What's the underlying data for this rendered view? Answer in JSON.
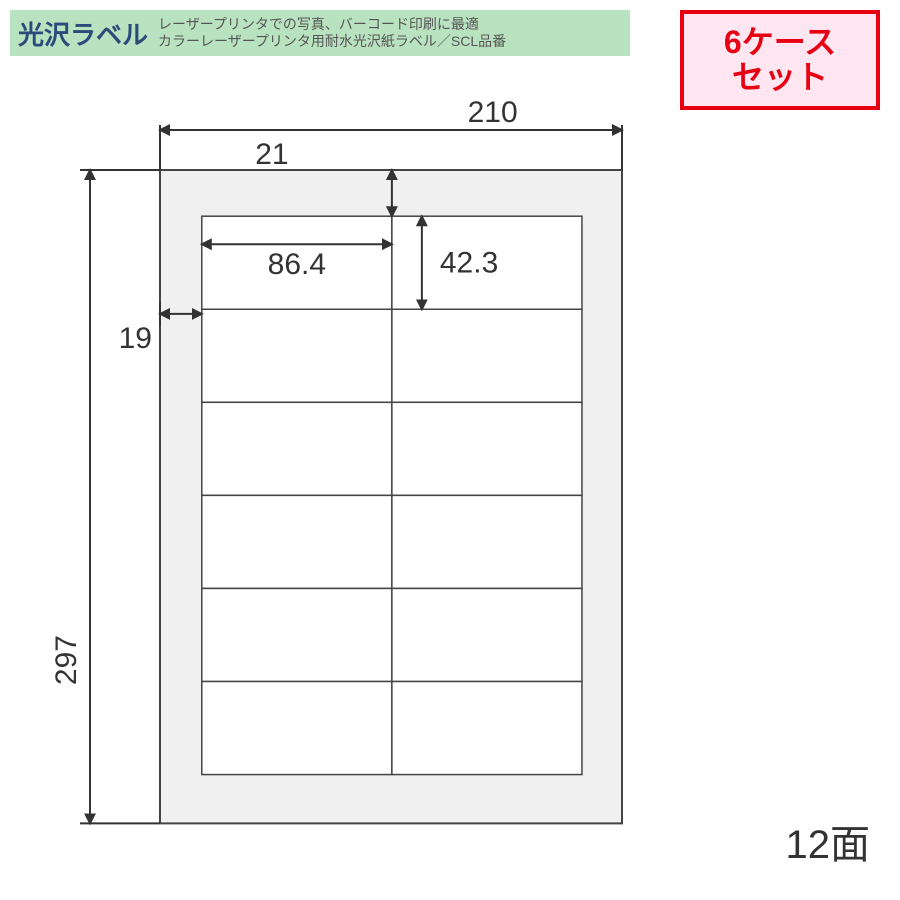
{
  "header": {
    "title": "光沢ラベル",
    "sub1": "レーザープリンタでの写真、バーコード印刷に最適",
    "sub2": "カラーレーザープリンタ用耐水光沢紙ラベル／SCL品番",
    "bg_color": "#b9e2c0",
    "title_color": "#2b4b7a"
  },
  "badge": {
    "line1": "6ケース",
    "line2": "セット",
    "border_color": "#e60012",
    "bg_color": "#ffe6f0",
    "text_color": "#e60012"
  },
  "diagram": {
    "sheet_width_mm": 210,
    "sheet_height_mm": 297,
    "top_margin_mm": 21,
    "left_margin_mm": 19,
    "label_width_mm": 86.4,
    "label_height_mm": 42.3,
    "cols": 2,
    "rows": 6,
    "face_count_label": "12面",
    "dimensions": {
      "sheet_width": "210",
      "sheet_height": "297",
      "top_margin": "21",
      "left_margin": "19",
      "label_width": "86.4",
      "label_height": "42.3"
    },
    "colors": {
      "sheet_fill": "#f0f0f0",
      "label_fill": "#ffffff",
      "stroke": "#444444",
      "dim_stroke": "#333333",
      "text": "#333333",
      "background": "#ffffff"
    },
    "line_widths": {
      "sheet_outline": 2,
      "label_outline": 1.5,
      "dim_line": 2
    },
    "font_sizes": {
      "dimension_pt": 30,
      "face_count_pt": 40
    }
  }
}
